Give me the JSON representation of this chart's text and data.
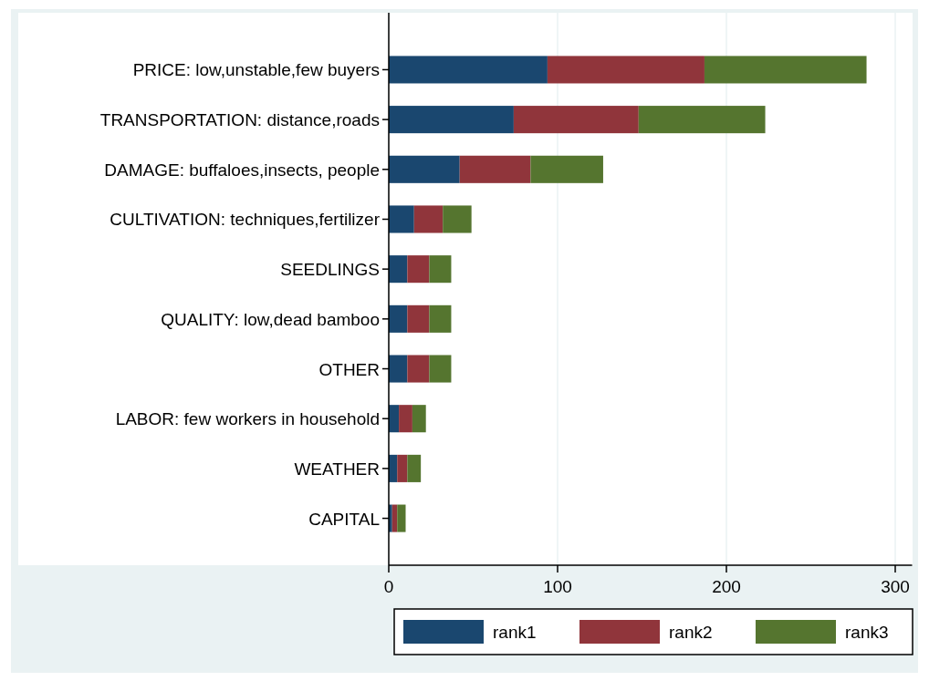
{
  "chart_data": {
    "type": "bar",
    "orientation": "horizontal",
    "stacked": true,
    "categories": [
      "PRICE: low,unstable,few buyers",
      "TRANSPORTATION: distance,roads",
      "DAMAGE: buffaloes,insects, people",
      "CULTIVATION: techniques,fertilizer",
      "SEEDLINGS",
      "QUALITY: low,dead bamboo",
      "OTHER",
      "LABOR: few workers in household",
      "WEATHER",
      "CAPITAL"
    ],
    "series": [
      {
        "name": "rank1",
        "color": "#1a476f",
        "values": [
          94,
          74,
          42,
          15,
          11,
          11,
          11,
          6,
          5,
          2
        ]
      },
      {
        "name": "rank2",
        "color": "#90353b",
        "values": [
          93,
          74,
          42,
          17,
          13,
          13,
          13,
          8,
          6,
          3
        ]
      },
      {
        "name": "rank3",
        "color": "#55752f",
        "values": [
          96,
          75,
          43,
          17,
          13,
          13,
          13,
          8,
          8,
          5
        ]
      }
    ],
    "xlim": [
      0,
      310
    ],
    "xticks": [
      0,
      100,
      200,
      300
    ],
    "grid": "x",
    "legend": "bottom"
  }
}
